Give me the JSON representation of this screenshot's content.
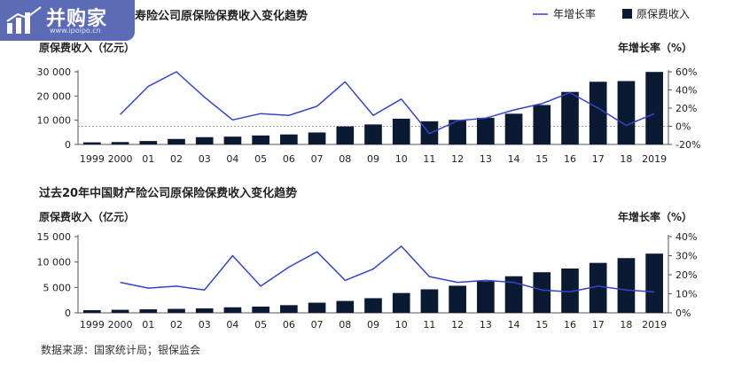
{
  "logo": {
    "text": "并购家",
    "url": "www.ipoipo.cn"
  },
  "legend": {
    "line": "年增长率",
    "bar": "原保费收入"
  },
  "source": "数据来源：国家统计局；银保监会",
  "chart_data": [
    {
      "type": "bar",
      "title": "寿险公司原保险保费收入变化趋势",
      "ylabel": "原保费收入（亿元）",
      "y2label": "年增长率（%）",
      "categories": [
        "1999",
        "2000",
        "01",
        "02",
        "03",
        "04",
        "05",
        "06",
        "07",
        "08",
        "09",
        "10",
        "11",
        "12",
        "13",
        "14",
        "15",
        "16",
        "17",
        "18",
        "2019"
      ],
      "ylim": [
        0,
        30000
      ],
      "yticks": [
        0,
        10000,
        20000,
        30000
      ],
      "ytick_labels": [
        "0",
        "10 000",
        "20 000",
        "30 000"
      ],
      "y2lim": [
        -20,
        60
      ],
      "y2ticks": [
        -20,
        0,
        20,
        40,
        60
      ],
      "y2tick_labels": [
        "-20%",
        "0%",
        "20%",
        "40%",
        "60%"
      ],
      "series": [
        {
          "kind": "bar",
          "values": [
            870,
            990,
            1420,
            2270,
            3010,
            3230,
            3700,
            4130,
            4950,
            7450,
            8260,
            10630,
            9560,
            10160,
            11010,
            12690,
            16290,
            21690,
            25880,
            26160,
            29930
          ]
        },
        {
          "kind": "line",
          "axis": "y2",
          "values": [
            null,
            13,
            44,
            60,
            32,
            7,
            14,
            12,
            22,
            49,
            12,
            30,
            -8,
            6,
            9,
            18,
            25,
            37,
            20,
            1,
            14
          ]
        }
      ],
      "reference_line": {
        "axis": "y",
        "value": 7500,
        "style": "dashed"
      },
      "legend_position": "top-right"
    },
    {
      "type": "bar",
      "title": "过去20年中国财产险公司原保险保费收入变化趋势",
      "ylabel": "原保费收入（亿元）",
      "y2label": "年增长率（%）",
      "categories": [
        "1999",
        "2000",
        "01",
        "02",
        "03",
        "04",
        "05",
        "06",
        "07",
        "08",
        "09",
        "10",
        "11",
        "12",
        "13",
        "14",
        "15",
        "16",
        "17",
        "18",
        "2019"
      ],
      "ylim": [
        0,
        15000
      ],
      "yticks": [
        0,
        5000,
        10000,
        15000
      ],
      "ytick_labels": [
        "0",
        "5 000",
        "10 000",
        "15 000"
      ],
      "y2lim": [
        0,
        40
      ],
      "y2ticks": [
        0,
        10,
        20,
        30,
        40
      ],
      "y2tick_labels": [
        "0%",
        "10%",
        "20%",
        "30%",
        "40%"
      ],
      "series": [
        {
          "kind": "bar",
          "values": [
            520,
            600,
            690,
            780,
            870,
            1090,
            1230,
            1510,
            2000,
            2340,
            2880,
            3900,
            4620,
            5330,
            6210,
            7200,
            7990,
            8720,
            9830,
            10770,
            11650
          ]
        },
        {
          "kind": "line",
          "axis": "y2",
          "values": [
            null,
            16,
            13,
            14,
            12,
            30,
            14,
            24,
            32,
            17,
            23,
            35,
            19,
            16,
            17,
            16,
            12,
            11,
            14,
            12,
            11
          ]
        }
      ]
    }
  ]
}
